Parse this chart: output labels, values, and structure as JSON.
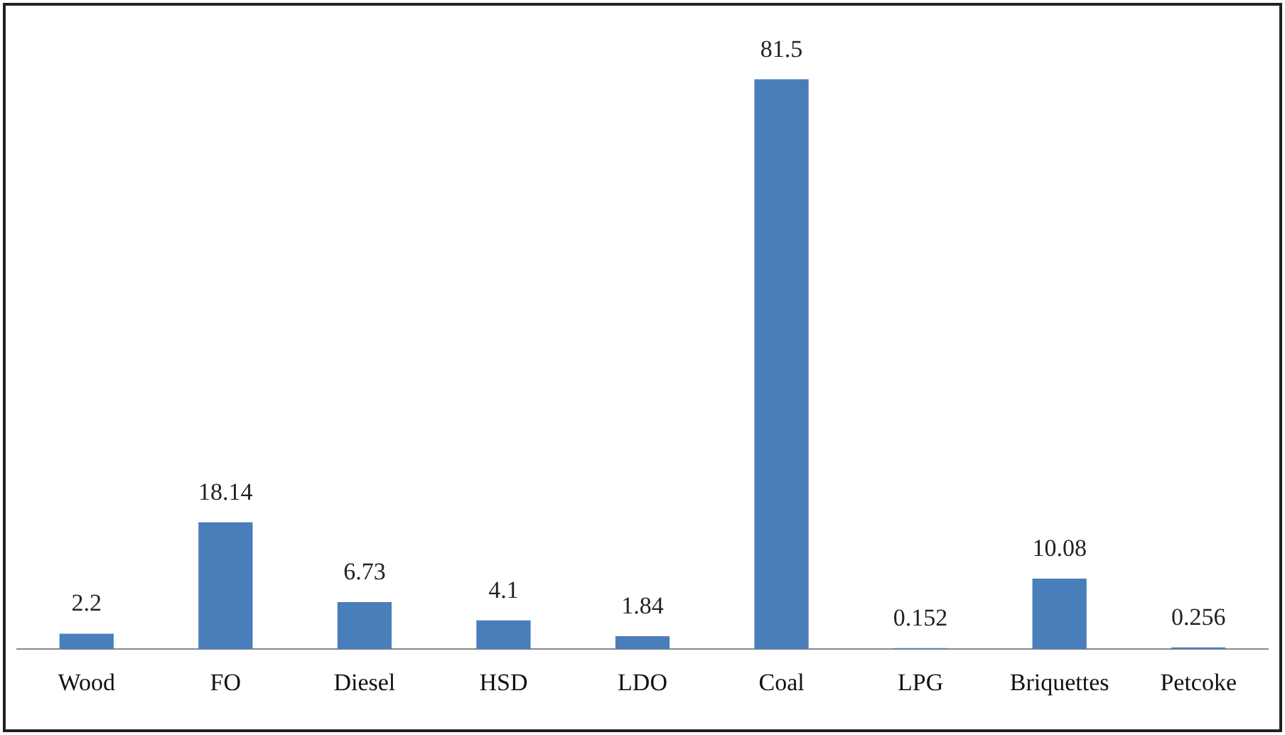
{
  "chart_data": {
    "type": "bar",
    "categories": [
      "Wood",
      "FO",
      "Diesel",
      "HSD",
      "LDO",
      "Coal",
      "LPG",
      "Briquettes",
      "Petcoke"
    ],
    "values": [
      2.2,
      18.14,
      6.73,
      4.1,
      1.84,
      81.5,
      0.152,
      10.08,
      0.256
    ],
    "color": "#4a7ebb",
    "data_labels": true,
    "grid": false,
    "legend": false
  }
}
